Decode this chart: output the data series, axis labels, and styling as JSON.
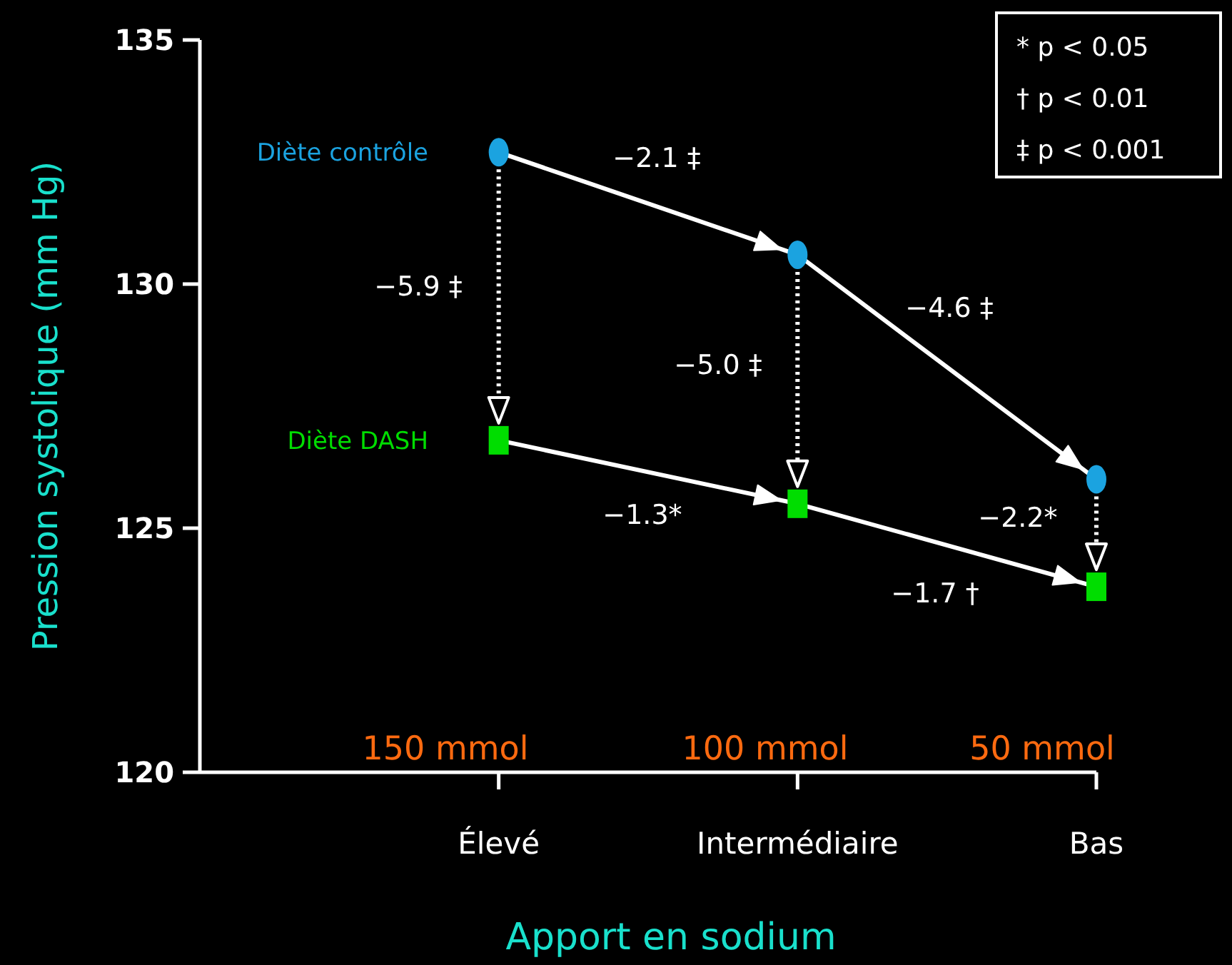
{
  "chart_data": {
    "type": "line",
    "xlabel": "Apport en sodium",
    "ylabel": "Pression systolique (mm Hg)",
    "categories": [
      "Élevé",
      "Intermédiaire",
      "Bas"
    ],
    "series": [
      {
        "name": "Diète contrôle",
        "color": "#1ba3e0",
        "values": [
          132.7,
          130.6,
          126.0
        ],
        "marker": "circle"
      },
      {
        "name": "Diète  DASH",
        "color": "#00dd00",
        "values": [
          126.8,
          125.5,
          123.8
        ],
        "marker": "square"
      }
    ],
    "ylim": [
      120,
      135
    ],
    "yticks": [
      120,
      125,
      130,
      135
    ],
    "grid": false,
    "annotations": [
      "−2.1 ‡",
      "−4.6 ‡",
      "−5.9 ‡",
      "−5.0 ‡",
      "−2.2*",
      "−1.3*",
      "−1.7 †",
      "* p < 0.05",
      "† p < 0.01",
      "‡ p < 0.001",
      "150 mmol",
      "100 mmol",
      "50 mmol"
    ]
  }
}
